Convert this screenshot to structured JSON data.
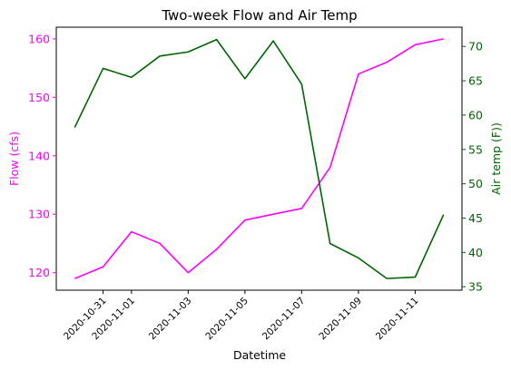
{
  "chart_data": {
    "type": "line",
    "title": "Two-week Flow and Air Temp",
    "xlabel": "Datetime",
    "x": [
      "2020-10-30",
      "2020-10-31",
      "2020-11-01",
      "2020-11-02",
      "2020-11-03",
      "2020-11-04",
      "2020-11-05",
      "2020-11-06",
      "2020-11-07",
      "2020-11-08",
      "2020-11-09",
      "2020-11-10",
      "2020-11-11",
      "2020-11-12"
    ],
    "x_ticks": [
      "2020-10-31",
      "2020-11-01",
      "2020-11-03",
      "2020-11-05",
      "2020-11-07",
      "2020-11-09",
      "2020-11-11"
    ],
    "series": [
      {
        "axis": "left",
        "color": "#ff00ff",
        "values": [
          119,
          121,
          127,
          125,
          120,
          124,
          129,
          130,
          131,
          138,
          154,
          156,
          159,
          160
        ]
      },
      {
        "axis": "right",
        "color": "#006400",
        "values": [
          58.2,
          66.8,
          65.5,
          68.6,
          69.2,
          71.0,
          65.3,
          70.8,
          64.5,
          41.3,
          39.2,
          36.2,
          36.4,
          45.5
        ]
      }
    ],
    "ylabel_left": "Flow (cfs)",
    "ylabel_right": "Air temp (F))",
    "ylim_left": [
      117,
      162
    ],
    "ylim_right": [
      34.5,
      72.8
    ],
    "yticks_left": [
      120,
      130,
      140,
      150,
      160
    ],
    "yticks_right": [
      35,
      40,
      45,
      50,
      55,
      60,
      65,
      70
    ],
    "left_axis_color": "#ff00ff",
    "right_axis_color": "#006400",
    "grid": false,
    "legend": "none"
  }
}
